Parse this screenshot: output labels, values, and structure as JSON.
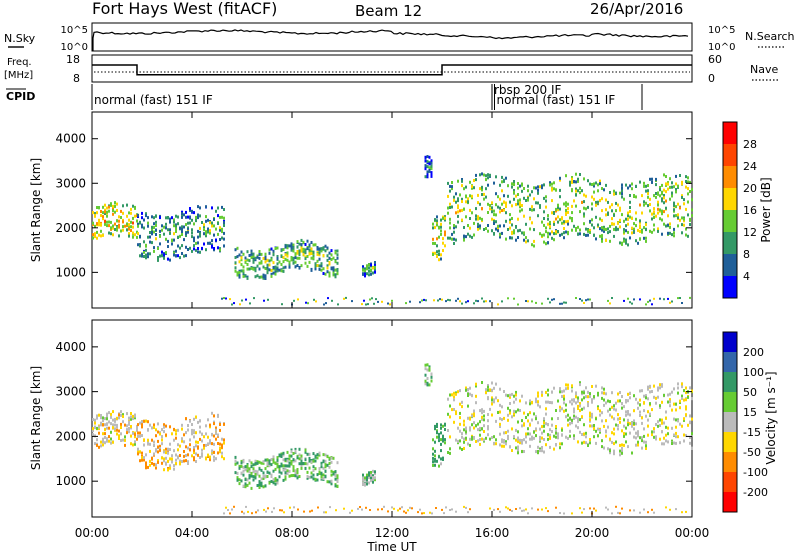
{
  "header": {
    "station": "Fort Hays West (fitACF)",
    "beam": "Beam 12",
    "date": "26/Apr/2016"
  },
  "top_strips": {
    "nsky_label": "N.Sky",
    "nsearch_label": "N.Search",
    "noise_ticks_left": [
      "10^5",
      "10^0"
    ],
    "noise_ticks_right": [
      "10^5",
      "10^0"
    ],
    "freq_label_line1": "Freq.",
    "freq_label_line2": "[MHz]",
    "freq_ticks": [
      "18",
      "8"
    ],
    "nave_label": "Nave",
    "nave_ticks": [
      "60",
      "0"
    ],
    "cpid_label": "CPID",
    "programs": [
      {
        "label": "normal (fast) 151 IF",
        "start_hour": 0,
        "end_hour": 16
      },
      {
        "label": "rbsp 200 IF",
        "start_hour": 16,
        "end_hour": 16.1
      },
      {
        "label": "normal (fast) 151 IF",
        "start_hour": 16.1,
        "end_hour": 22
      }
    ]
  },
  "power_colorbar": {
    "label": "Power [dB]",
    "ticks": [
      "28",
      "24",
      "20",
      "16",
      "12",
      "8",
      "4"
    ],
    "colors": [
      "#ff0000",
      "#ff4500",
      "#ff8c00",
      "#ffd700",
      "#66cc33",
      "#339966",
      "#1f5f99",
      "#0000ff"
    ]
  },
  "velocity_colorbar": {
    "label": "Velocity [m s⁻¹]",
    "ticks": [
      "200",
      "100",
      "50",
      "15",
      "-15",
      "-50",
      "-100",
      "-200"
    ],
    "colors": [
      "#0000cc",
      "#3366aa",
      "#339966",
      "#66cc33",
      "#bbbbbb",
      "#ffd700",
      "#ff8c00",
      "#ff4500",
      "#ff0000"
    ]
  },
  "chart_data": {
    "type": "heatmap",
    "panels": [
      {
        "name": "power",
        "ylabel": "Slant Range [km]",
        "yticks": [
          "4000",
          "3000",
          "2000",
          "1000"
        ],
        "ylim": [
          200,
          4600
        ]
      },
      {
        "name": "velocity",
        "ylabel": "Slant Range [km]",
        "yticks": [
          "4000",
          "3000",
          "2000",
          "1000"
        ],
        "ylim": [
          200,
          4600
        ]
      }
    ],
    "xlabel": "Time UT",
    "xticks": [
      "00:00",
      "04:00",
      "08:00",
      "12:00",
      "16:00",
      "20:00",
      "00:00"
    ],
    "xlim_hours": [
      0,
      24
    ],
    "freq_mhz": [
      {
        "start_hour": 0,
        "end_hour": 1.8,
        "value": 14.3
      },
      {
        "start_hour": 1.8,
        "end_hour": 14,
        "value": 10.7
      },
      {
        "start_hour": 14,
        "end_hour": 24,
        "value": 14.3
      }
    ],
    "scatter_regions": [
      {
        "start_hour": 0.0,
        "end_hour": 1.8,
        "range_low": 1700,
        "range_high": 2450,
        "power_db": 22,
        "velocity": -10
      },
      {
        "start_hour": 1.8,
        "end_hour": 5.3,
        "range_low": 1350,
        "range_high": 2400,
        "power_db": 14,
        "velocity": -20
      },
      {
        "start_hour": 5.7,
        "end_hour": 9.8,
        "range_low": 950,
        "range_high": 1600,
        "power_db": 16,
        "velocity": 30
      },
      {
        "start_hour": 10.8,
        "end_hour": 11.3,
        "range_low": 950,
        "range_high": 1200,
        "power_db": 14,
        "velocity": 30
      },
      {
        "start_hour": 13.6,
        "end_hour": 14.1,
        "range_low": 1400,
        "range_high": 2400,
        "power_db": 20,
        "velocity": 40
      },
      {
        "start_hour": 13.3,
        "end_hour": 13.6,
        "range_low": 3200,
        "range_high": 3700,
        "power_db": 10,
        "velocity": 20
      },
      {
        "start_hour": 14.2,
        "end_hour": 24.0,
        "range_low": 1700,
        "range_high": 3100,
        "power_db": 18,
        "velocity": 0
      }
    ]
  }
}
